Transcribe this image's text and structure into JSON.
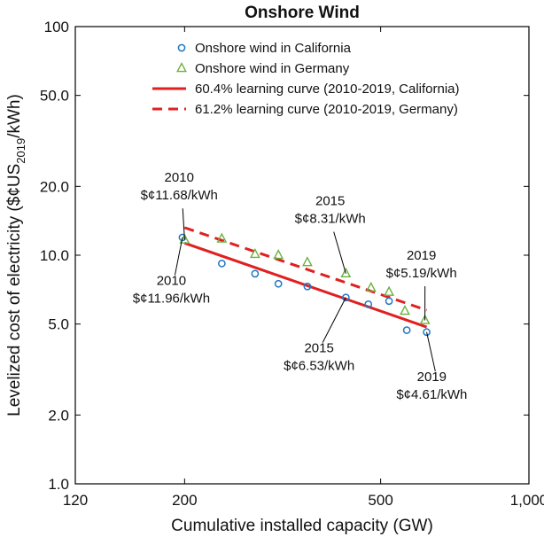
{
  "chart_data": {
    "type": "scatter",
    "title": "Onshore Wind",
    "xlabel": "Cumulative installed capacity (GW)",
    "ylabel_main": "Levelized cost of electricity ($¢US",
    "ylabel_sub": "2019",
    "ylabel_tail": "/kWh)",
    "x_scale": "log",
    "y_scale": "log",
    "xlim": [
      120,
      1000
    ],
    "ylim": [
      1,
      100
    ],
    "x_ticks": [
      120,
      200,
      500,
      1000
    ],
    "x_tick_labels": [
      "120",
      "200",
      "500",
      "1,000"
    ],
    "y_ticks": [
      1,
      2,
      5,
      10,
      20,
      50,
      100
    ],
    "y_tick_labels": [
      "1.0",
      "2.0",
      "5.0",
      "10.0",
      "20.0",
      "50.0",
      "100"
    ],
    "grid": false,
    "legend_position": "top",
    "series": [
      {
        "name": "Onshore wind in California",
        "marker": "circle",
        "color": "#1f77c4",
        "x": [
          198,
          238,
          278,
          310,
          355,
          425,
          472,
          520,
          565,
          620
        ],
        "y": [
          11.96,
          9.2,
          8.3,
          7.5,
          7.3,
          6.53,
          6.1,
          6.3,
          4.7,
          4.61
        ]
      },
      {
        "name": "Onshore wind in Germany",
        "marker": "triangle",
        "color": "#6bb03e",
        "x": [
          200,
          238,
          278,
          310,
          355,
          425,
          478,
          520,
          560,
          615
        ],
        "y": [
          11.68,
          11.8,
          10.1,
          10.0,
          9.3,
          8.31,
          7.2,
          6.9,
          5.7,
          5.19
        ]
      },
      {
        "name": "60.4% learning curve (2010-2019, California)",
        "line": "solid",
        "color": "#e02020",
        "x": [
          200,
          620
        ],
        "y": [
          11.3,
          4.85
        ]
      },
      {
        "name": "61.2% learning curve (2010-2019, Germany)",
        "line": "dashed",
        "color": "#e02020",
        "x": [
          200,
          620
        ],
        "y": [
          13.2,
          5.75
        ]
      }
    ],
    "annotations": [
      {
        "line1": "2010",
        "line2": "$¢11.68/kWh",
        "point": [
          200,
          11.68
        ],
        "text_at": [
          195,
          19.5
        ]
      },
      {
        "line1": "2010",
        "line2": "$¢11.96/kWh",
        "point": [
          198,
          11.96
        ],
        "text_at": [
          188,
          6.9
        ]
      },
      {
        "line1": "2015",
        "line2": "$¢8.31/kWh",
        "point": [
          425,
          8.31
        ],
        "text_at": [
          395,
          15.4
        ]
      },
      {
        "line1": "2015",
        "line2": "$¢6.53/kWh",
        "point": [
          425,
          6.53
        ],
        "text_at": [
          375,
          3.5
        ]
      },
      {
        "line1": "2019",
        "line2": "$¢5.19/kWh",
        "point": [
          615,
          5.19
        ],
        "text_at": [
          605,
          8.9
        ]
      },
      {
        "line1": "2019",
        "line2": "$¢4.61/kWh",
        "point": [
          620,
          4.61
        ],
        "text_at": [
          635,
          2.62
        ]
      }
    ]
  }
}
